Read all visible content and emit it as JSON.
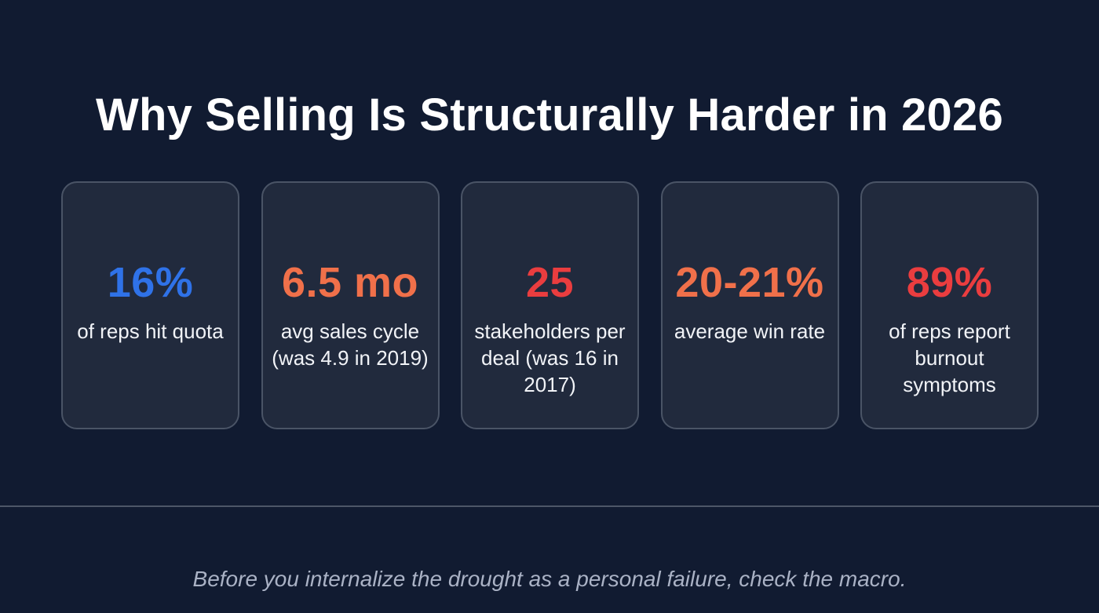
{
  "slide": {
    "title": "Why Selling Is Structurally Harder in 2026",
    "footer_text": "Before you internalize the drought as a personal failure, check the macro.",
    "background_color": "#111b31",
    "card_background_color": "#212a3d",
    "card_border_color": "#4a5466"
  },
  "stats": [
    {
      "value": "16%",
      "label": "of reps hit quota",
      "color": "#2f72e8"
    },
    {
      "value": "6.5 mo",
      "label": "avg sales cycle (was 4.9 in 2019)",
      "color": "#f0704a"
    },
    {
      "value": "25",
      "label": "stakeholders per deal (was 16 in 2017)",
      "color": "#ea3d3f"
    },
    {
      "value": "20-21%",
      "label": "average win rate",
      "color": "#f0704a"
    },
    {
      "value": "89%",
      "label": "of reps report burnout symptoms",
      "color": "#ea3d3f"
    }
  ]
}
